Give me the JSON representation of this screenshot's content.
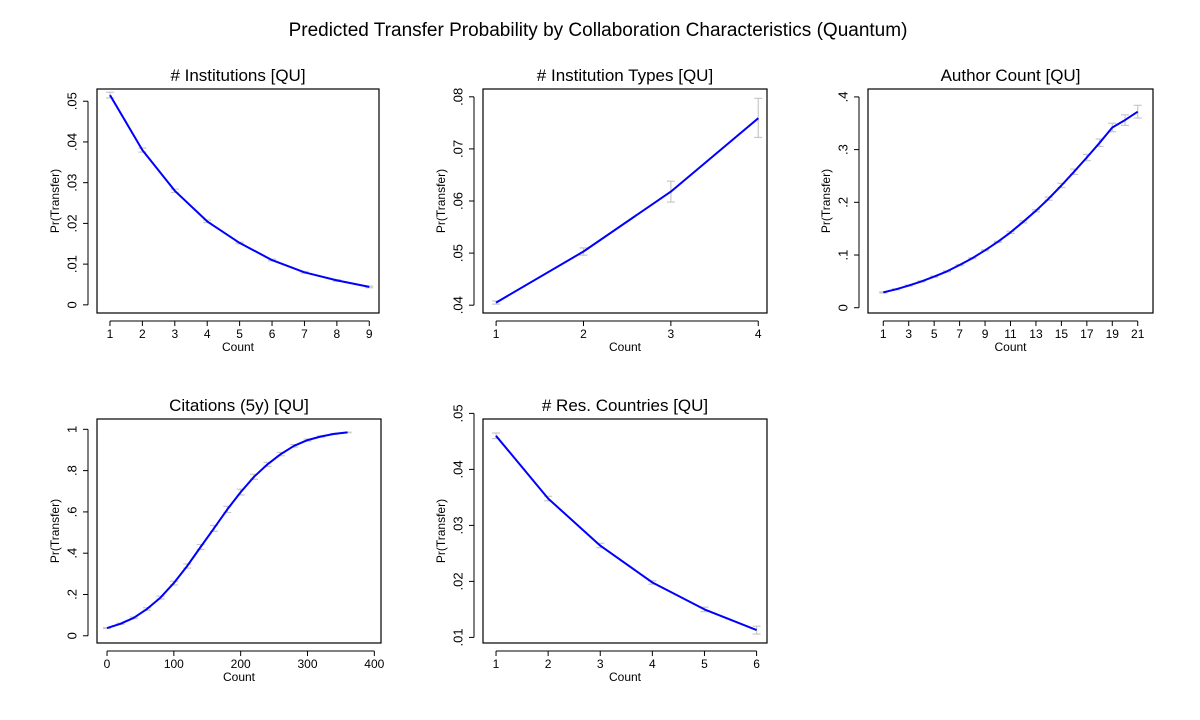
{
  "figure_title": "Predicted Transfer Probability by Collaboration Characteristics (Quantum)",
  "colors": {
    "line": "#0000ff",
    "ci": "#c8c8c8",
    "frame": "#000000"
  },
  "chart_data": [
    {
      "type": "line",
      "title": "# Institutions [QU]",
      "xlabel": "Count",
      "ylabel": "Pr(Transfer)",
      "xlim": [
        0.6,
        9.3
      ],
      "ylim": [
        -0.002,
        0.053
      ],
      "xticks": [
        1,
        2,
        3,
        4,
        5,
        6,
        7,
        8,
        9
      ],
      "xtick_labels": [
        "1",
        "2",
        "3",
        "4",
        "5",
        "6",
        "7",
        "8",
        "9"
      ],
      "yticks": [
        0,
        0.01,
        0.02,
        0.03,
        0.04,
        0.05
      ],
      "ytick_labels": [
        "0",
        ".01",
        ".02",
        ".03",
        ".04",
        ".05"
      ],
      "x": [
        1,
        2,
        3,
        4,
        5,
        6,
        7,
        8,
        9
      ],
      "y": [
        0.0515,
        0.038,
        0.028,
        0.0205,
        0.0152,
        0.011,
        0.008,
        0.006,
        0.0044
      ],
      "ci_lo": [
        0.0508,
        0.0375,
        0.0276,
        0.0202,
        0.015,
        0.0108,
        0.0078,
        0.0058,
        0.0042
      ],
      "ci_hi": [
        0.0522,
        0.0385,
        0.0284,
        0.0208,
        0.0154,
        0.0112,
        0.0082,
        0.0062,
        0.0046
      ]
    },
    {
      "type": "line",
      "title": "# Institution Types [QU]",
      "xlabel": "Count",
      "ylabel": "Pr(Transfer)",
      "xlim": [
        0.85,
        4.1
      ],
      "ylim": [
        0.0385,
        0.0815
      ],
      "xticks": [
        1,
        2,
        3,
        4
      ],
      "xtick_labels": [
        "1",
        "2",
        "3",
        "4"
      ],
      "yticks": [
        0.04,
        0.05,
        0.06,
        0.07,
        0.08
      ],
      "ytick_labels": [
        ".04",
        ".05",
        ".06",
        ".07",
        ".08"
      ],
      "x": [
        1,
        2,
        3,
        4
      ],
      "y": [
        0.0405,
        0.0503,
        0.0618,
        0.0759
      ],
      "ci_lo": [
        0.0402,
        0.0496,
        0.0598,
        0.0722
      ],
      "ci_hi": [
        0.0408,
        0.051,
        0.0638,
        0.0797
      ]
    },
    {
      "type": "line",
      "title": "Author Count [QU]",
      "xlabel": "Count",
      "ylabel": "Pr(Transfer)",
      "xlim": [
        -0.2,
        22.2
      ],
      "ylim": [
        -0.01,
        0.415
      ],
      "xticks": [
        1,
        3,
        5,
        7,
        9,
        11,
        13,
        15,
        17,
        19,
        21
      ],
      "xtick_labels": [
        "1",
        "3",
        "5",
        "7",
        "9",
        "11",
        "13",
        "15",
        "17",
        "19",
        "21"
      ],
      "yticks": [
        0,
        0.1,
        0.2,
        0.3,
        0.4
      ],
      "ytick_labels": [
        "0",
        ".1",
        ".2",
        ".3",
        ".4"
      ],
      "x": [
        1,
        2,
        3,
        4,
        5,
        6,
        7,
        8,
        9,
        10,
        11,
        12,
        13,
        14,
        15,
        16,
        17,
        18,
        19,
        20,
        21
      ],
      "y": [
        0.029,
        0.035,
        0.042,
        0.05,
        0.059,
        0.069,
        0.081,
        0.094,
        0.109,
        0.125,
        0.143,
        0.163,
        0.184,
        0.207,
        0.232,
        0.258,
        0.285,
        0.313,
        0.342,
        0.356,
        0.372
      ],
      "ci_lo": [
        0.028,
        0.034,
        0.041,
        0.049,
        0.058,
        0.068,
        0.08,
        0.093,
        0.108,
        0.124,
        0.141,
        0.161,
        0.182,
        0.204,
        0.228,
        0.253,
        0.279,
        0.306,
        0.334,
        0.346,
        0.36
      ],
      "ci_hi": [
        0.03,
        0.036,
        0.043,
        0.051,
        0.06,
        0.07,
        0.082,
        0.095,
        0.11,
        0.126,
        0.145,
        0.165,
        0.186,
        0.21,
        0.236,
        0.263,
        0.291,
        0.32,
        0.35,
        0.366,
        0.384
      ]
    },
    {
      "type": "line",
      "title": "Citations (5y) [QU]",
      "xlabel": "Count",
      "ylabel": "Pr(Transfer)",
      "xlim": [
        -15,
        410
      ],
      "ylim": [
        -0.035,
        1.05
      ],
      "xticks": [
        0,
        100,
        200,
        300,
        400
      ],
      "xtick_labels": [
        "0",
        "100",
        "200",
        "300",
        "400"
      ],
      "yticks": [
        0,
        0.2,
        0.4,
        0.6,
        0.8,
        1
      ],
      "ytick_labels": [
        "0",
        ".2",
        ".4",
        ".6",
        ".8",
        "1"
      ],
      "x": [
        0,
        20,
        40,
        60,
        80,
        100,
        120,
        140,
        160,
        180,
        200,
        220,
        240,
        260,
        280,
        300,
        320,
        340,
        360
      ],
      "y": [
        0.037,
        0.058,
        0.087,
        0.13,
        0.185,
        0.255,
        0.338,
        0.43,
        0.52,
        0.612,
        0.696,
        0.77,
        0.83,
        0.88,
        0.92,
        0.948,
        0.965,
        0.978,
        0.985
      ],
      "ci_lo": [
        0.035,
        0.055,
        0.083,
        0.124,
        0.178,
        0.246,
        0.328,
        0.418,
        0.506,
        0.597,
        0.682,
        0.758,
        0.82,
        0.872,
        0.914,
        0.943,
        0.962,
        0.976,
        0.984
      ],
      "ci_hi": [
        0.039,
        0.061,
        0.091,
        0.136,
        0.192,
        0.264,
        0.348,
        0.442,
        0.534,
        0.627,
        0.71,
        0.782,
        0.84,
        0.888,
        0.926,
        0.953,
        0.968,
        0.98,
        0.986
      ]
    },
    {
      "type": "line",
      "title": "# Res. Countries [QU]",
      "xlabel": "Count",
      "ylabel": "Pr(Transfer)",
      "xlim": [
        0.75,
        6.2
      ],
      "ylim": [
        0.009,
        0.049
      ],
      "xticks": [
        1,
        2,
        3,
        4,
        5,
        6
      ],
      "xtick_labels": [
        "1",
        "2",
        "3",
        "4",
        "5",
        "6"
      ],
      "yticks": [
        0.01,
        0.02,
        0.03,
        0.04,
        0.05
      ],
      "ytick_labels": [
        ".01",
        ".02",
        ".03",
        ".04",
        ".05"
      ],
      "x": [
        1,
        2,
        3,
        4,
        5,
        6
      ],
      "y": [
        0.046,
        0.0348,
        0.0264,
        0.0198,
        0.015,
        0.0113
      ],
      "ci_lo": [
        0.0455,
        0.0344,
        0.026,
        0.0195,
        0.0146,
        0.0106
      ],
      "ci_hi": [
        0.0465,
        0.0352,
        0.0268,
        0.0201,
        0.0154,
        0.012
      ]
    }
  ]
}
